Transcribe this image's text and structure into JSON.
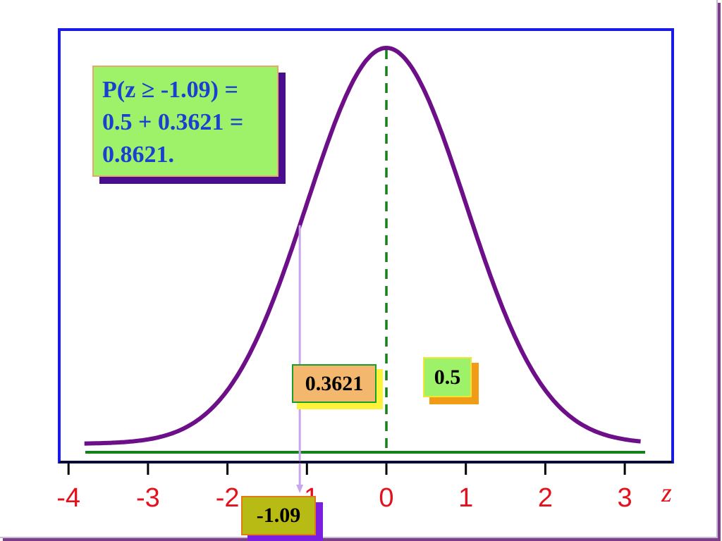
{
  "formula": {
    "lines": [
      "P(z ≥ -1.09) =",
      "0.5 + 0.3621 =",
      "0.8621."
    ]
  },
  "labels": {
    "area_left": "0.3621",
    "area_right": "0.5",
    "z_value": "-1.09",
    "axis_variable": "z"
  },
  "colors": {
    "frame_border": "#1b1be6",
    "curve": "#6e0f8a",
    "baseline": "#16801a",
    "mean_line": "#16801a",
    "z_marker": "#c9a6ec",
    "tick_label": "#e5101c"
  },
  "chart_data": {
    "type": "line",
    "title": "",
    "xlabel": "z",
    "ylabel": "",
    "x_ticks": [
      "-4",
      "-3",
      "-2",
      "-1",
      "0",
      "1",
      "2",
      "3"
    ],
    "xlim": [
      -3.8,
      3.2
    ],
    "curve": "standard normal density",
    "mean": 0,
    "std": 1,
    "marked_z": -1.09,
    "area_between_z_and_mean": 0.3621,
    "area_above_mean": 0.5,
    "total_probability": 0.8621,
    "grid": false
  }
}
